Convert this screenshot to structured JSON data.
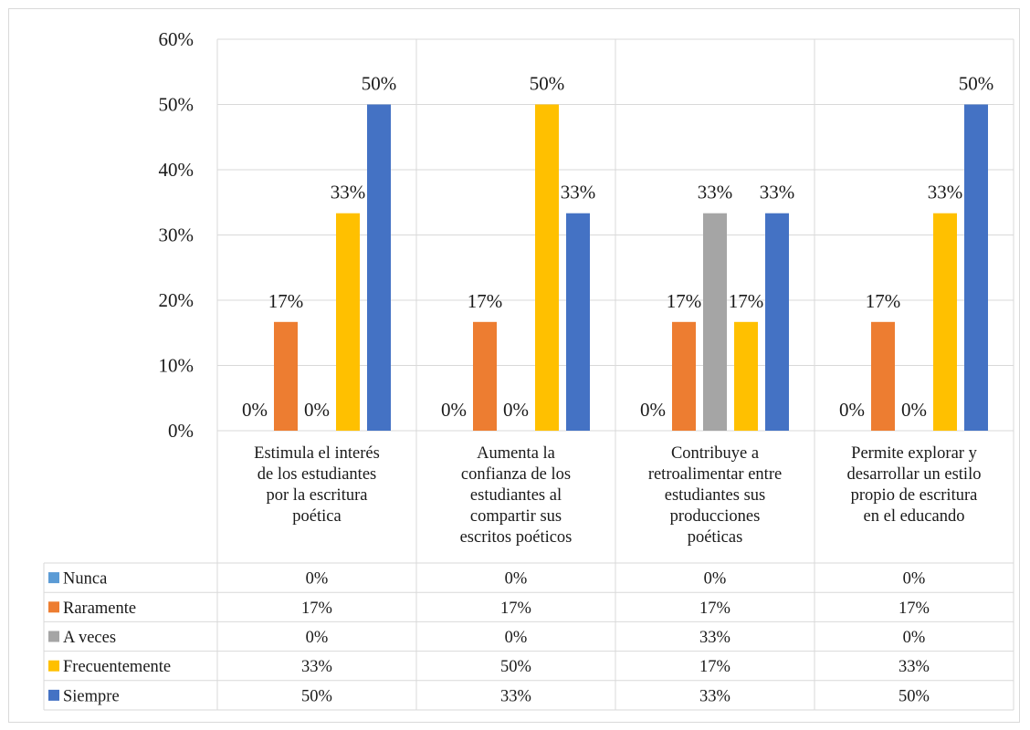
{
  "chart_data": {
    "type": "bar",
    "ylim": [
      0,
      60
    ],
    "y_unit": "%",
    "yticks": [
      "0%",
      "10%",
      "20%",
      "30%",
      "40%",
      "50%",
      "60%"
    ],
    "grid": true,
    "legend": "data-table",
    "categories": [
      [
        "Estimula el interés",
        "de los estudiantes",
        "por la escritura",
        "poética"
      ],
      [
        "Aumenta la",
        "confianza de los",
        "estudiantes al",
        "compartir sus",
        "escritos poéticos"
      ],
      [
        "Contribuye a",
        "retroalimentar entre",
        "estudiantes sus",
        "producciones",
        "poéticas"
      ],
      [
        "Permite explorar y",
        "desarrollar un estilo",
        "propio de escritura",
        "en el educando"
      ]
    ],
    "series": [
      {
        "name": "Nunca",
        "color": "#5b9bd5",
        "values": [
          0,
          0,
          0,
          0
        ],
        "labels": [
          "0%",
          "0%",
          "0%",
          "0%"
        ]
      },
      {
        "name": "Raramente",
        "color": "#ed7d31",
        "values": [
          16.67,
          16.67,
          16.67,
          16.67
        ],
        "labels": [
          "17%",
          "17%",
          "17%",
          "17%"
        ]
      },
      {
        "name": "A veces",
        "color": "#a5a5a5",
        "values": [
          0,
          0,
          33.33,
          0
        ],
        "labels": [
          "0%",
          "0%",
          "33%",
          "0%"
        ]
      },
      {
        "name": "Frecuentemente",
        "color": "#ffc000",
        "values": [
          33.33,
          50,
          16.67,
          33.33
        ],
        "labels": [
          "33%",
          "50%",
          "17%",
          "33%"
        ]
      },
      {
        "name": "Siempre",
        "color": "#4472c4",
        "values": [
          50,
          33.33,
          33.33,
          50
        ],
        "labels": [
          "50%",
          "33%",
          "33%",
          "50%"
        ]
      }
    ]
  }
}
